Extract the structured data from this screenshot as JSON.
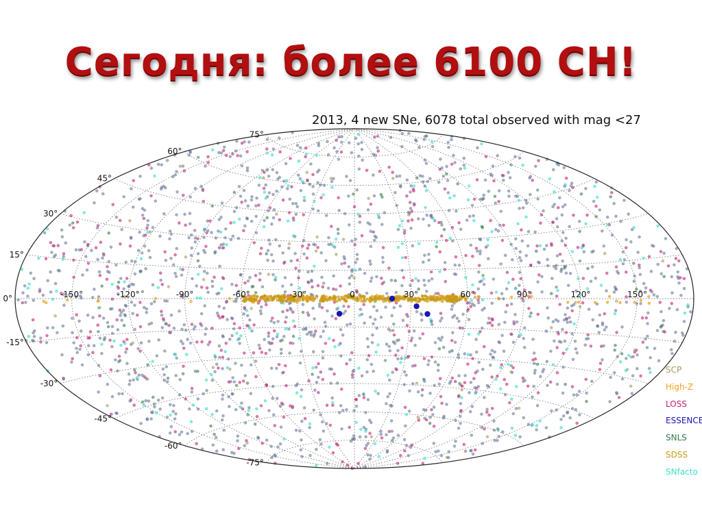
{
  "slide": {
    "title": "Сегодня: более 6100 СН!"
  },
  "chart_data": {
    "type": "scatter",
    "projection": "aitoff",
    "title": "2013, 4 new SNe, 6078 total observed with mag <27",
    "longitude_ticks": [
      -150,
      -120,
      -90,
      -60,
      -30,
      0,
      30,
      60,
      90,
      120,
      150
    ],
    "longitude_labels": [
      "-150°",
      "-120°",
      "-90°",
      "-60°",
      "-30°",
      "0°",
      "30°",
      "60°",
      "90°",
      "120°",
      "150°"
    ],
    "latitude_ticks": [
      75,
      60,
      45,
      30,
      15,
      0,
      -15,
      -30,
      -45,
      -60,
      -75
    ],
    "latitude_labels": [
      "75°",
      "60°",
      "45°",
      "30°",
      "15°",
      "0°",
      "-15°",
      "-30°",
      "-45°",
      "-60°",
      "-75°"
    ],
    "grid": true,
    "legend_position": "bottom-right",
    "series": [
      {
        "name": "SCP",
        "color": "#a6965e"
      },
      {
        "name": "High-Z",
        "color": "#f2a120"
      },
      {
        "name": "LOSS",
        "color": "#c0206e"
      },
      {
        "name": "ESSENCE",
        "color": "#1b14b5"
      },
      {
        "name": "SNLS",
        "color": "#3a7a4a"
      },
      {
        "name": "SDSS",
        "color": "#c99a10"
      },
      {
        "name": "SNfacto",
        "color": "#3fe0cc"
      }
    ],
    "background_points_color": "#5a6a8c",
    "highlight_points": [
      {
        "series": "ESSENCE",
        "lon": 20,
        "lat": 0
      },
      {
        "series": "ESSENCE",
        "lon": 33,
        "lat": -4
      },
      {
        "series": "ESSENCE",
        "lon": 39,
        "lat": -8
      },
      {
        "series": "ESSENCE",
        "lon": -8,
        "lat": -8
      }
    ],
    "sdss_stripe": {
      "lon_range": [
        -60,
        60
      ],
      "lat_range": [
        -1.5,
        1.5
      ]
    }
  }
}
